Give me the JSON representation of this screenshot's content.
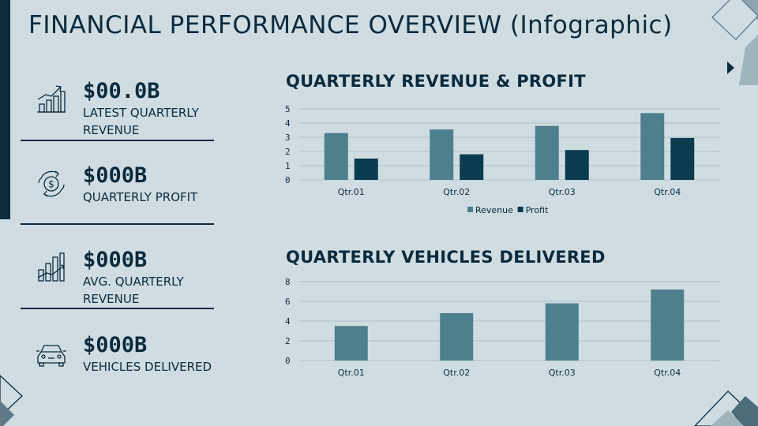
{
  "page": {
    "title": "FINANCIAL PERFORMANCE OVERVIEW (Infographic)"
  },
  "kpis": [
    {
      "value": "$00.0B",
      "label": "LATEST QUARTERLY REVENUE",
      "icon": "growth-chart-icon"
    },
    {
      "value": "$000B",
      "label": "QUARTERLY PROFIT",
      "icon": "money-cycle-icon"
    },
    {
      "value": "$000B",
      "label": "AVG. QUARTERLY REVENUE",
      "icon": "rising-bars-icon"
    },
    {
      "value": "$000B",
      "label": "VEHICLES DELIVERED",
      "icon": "car-icon"
    }
  ],
  "colors": {
    "background": "#cfdde3",
    "dark": "#0b2a3c",
    "revenue": "#4e7f8d",
    "profit": "#0b3b4e",
    "grid": "#aebfc8"
  },
  "chart_data": [
    {
      "type": "bar",
      "title": "QUARTERLY REVENUE & PROFIT",
      "categories": [
        "Qtr.01",
        "Qtr.02",
        "Qtr.03",
        "Qtr.04"
      ],
      "series": [
        {
          "name": "Revenue",
          "values": [
            3.3,
            3.55,
            3.8,
            4.7
          ]
        },
        {
          "name": "Profit",
          "values": [
            1.5,
            1.8,
            2.1,
            2.95
          ]
        }
      ],
      "yticks": [
        0,
        1,
        2,
        3,
        4,
        5
      ],
      "ylim": [
        0,
        5
      ],
      "grid": true,
      "legend": "bottom-center",
      "xlabel": "",
      "ylabel": ""
    },
    {
      "type": "bar",
      "title": "QUARTERLY VEHICLES DELIVERED",
      "categories": [
        "Qtr.01",
        "Qtr.02",
        "Qtr.03",
        "Qtr.04"
      ],
      "series": [
        {
          "name": "Vehicles Delivered",
          "values": [
            3.5,
            4.8,
            5.8,
            7.2
          ]
        }
      ],
      "yticks": [
        0,
        2,
        4,
        6,
        8
      ],
      "ylim": [
        0,
        8
      ],
      "grid": true,
      "legend": "none",
      "xlabel": "",
      "ylabel": ""
    }
  ]
}
